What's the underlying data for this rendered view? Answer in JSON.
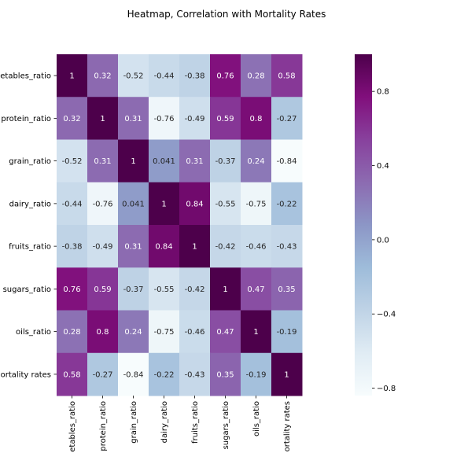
{
  "chart_data": {
    "type": "heatmap",
    "title": "Heatmap, Correlation with Mortality Rates",
    "row_labels": [
      "etables_ratio",
      "protein_ratio",
      "grain_ratio",
      "dairy_ratio",
      "fruits_ratio",
      "sugars_ratio",
      "oils_ratio",
      "ortality rates"
    ],
    "col_labels": [
      "etables_ratio",
      "protein_ratio",
      "grain_ratio",
      "dairy_ratio",
      "fruits_ratio",
      "sugars_ratio",
      "oils_ratio",
      "ortality rates"
    ],
    "values": [
      [
        1,
        0.32,
        -0.52,
        -0.44,
        -0.38,
        0.76,
        0.28,
        0.58
      ],
      [
        0.32,
        1,
        0.31,
        -0.76,
        -0.49,
        0.59,
        0.8,
        -0.27
      ],
      [
        -0.52,
        0.31,
        1,
        0.041,
        0.31,
        -0.37,
        0.24,
        -0.84
      ],
      [
        -0.44,
        -0.76,
        0.041,
        1,
        0.84,
        -0.55,
        -0.75,
        -0.22
      ],
      [
        -0.38,
        -0.49,
        0.31,
        0.84,
        1,
        -0.42,
        -0.46,
        -0.43
      ],
      [
        0.76,
        0.59,
        -0.37,
        -0.55,
        -0.42,
        1,
        0.47,
        0.35
      ],
      [
        0.28,
        0.8,
        0.24,
        -0.75,
        -0.46,
        0.47,
        1,
        -0.19
      ],
      [
        0.58,
        -0.27,
        -0.84,
        -0.22,
        -0.43,
        0.35,
        -0.19,
        1
      ]
    ],
    "cell_labels": [
      [
        "1",
        "0.32",
        "-0.52",
        "-0.44",
        "-0.38",
        "0.76",
        "0.28",
        "0.58"
      ],
      [
        "0.32",
        "1",
        "0.31",
        "-0.76",
        "-0.49",
        "0.59",
        "0.8",
        "-0.27"
      ],
      [
        "-0.52",
        "0.31",
        "1",
        "0.041",
        "0.31",
        "-0.37",
        "0.24",
        "-0.84"
      ],
      [
        "-0.44",
        "-0.76",
        "0.041",
        "1",
        "0.84",
        "-0.55",
        "-0.75",
        "-0.22"
      ],
      [
        "-0.38",
        "-0.49",
        "0.31",
        "0.84",
        "1",
        "-0.42",
        "-0.46",
        "-0.43"
      ],
      [
        "0.76",
        "0.59",
        "-0.37",
        "-0.55",
        "-0.42",
        "1",
        "0.47",
        "0.35"
      ],
      [
        "0.28",
        "0.8",
        "0.24",
        "-0.75",
        "-0.46",
        "0.47",
        "1",
        "-0.19"
      ],
      [
        "0.58",
        "-0.27",
        "-0.84",
        "-0.22",
        "-0.43",
        "0.35",
        "-0.19",
        "1"
      ]
    ],
    "colormap": "BuPu",
    "colorbar": {
      "range": [
        -0.84,
        1
      ],
      "ticks": [
        -0.8,
        -0.4,
        0.0,
        0.4,
        0.8
      ],
      "tick_labels": [
        "−0.8",
        "−0.4",
        "0.0",
        "0.4",
        "0.8"
      ]
    }
  }
}
